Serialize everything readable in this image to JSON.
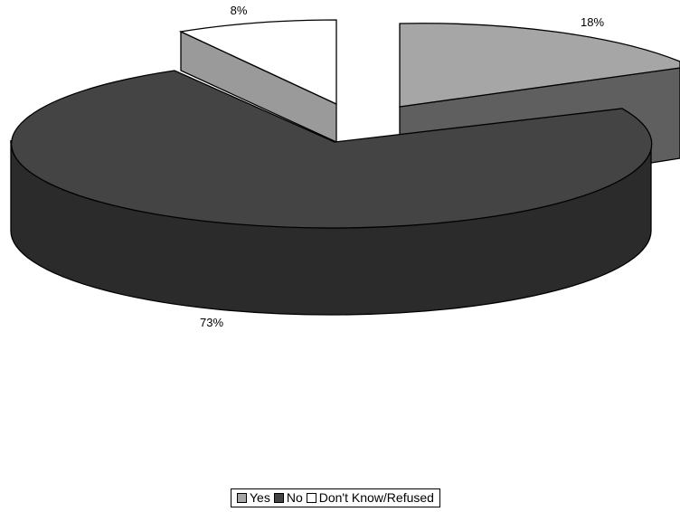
{
  "chart_data": {
    "type": "pie",
    "style": "3d-exploded",
    "categories": [
      "Yes",
      "No",
      "Don't Know/Refused"
    ],
    "values": [
      18,
      73,
      8
    ],
    "labels": [
      "18%",
      "73%",
      "8%"
    ],
    "colors": {
      "Yes": {
        "top": "#a6a6a6",
        "side": "#5f5f5f"
      },
      "No": {
        "top": "#444444",
        "side": "#2b2b2b"
      },
      "Don't Know/Refused": {
        "top": "#ffffff",
        "side": "#9a9a9a"
      }
    },
    "legend": {
      "placement": "bottom-center",
      "entries": [
        {
          "label": "Yes",
          "color": "#a6a6a6"
        },
        {
          "label": "No",
          "color": "#444444"
        },
        {
          "label": "Don't Know/Refused",
          "color": "#ffffff"
        }
      ]
    },
    "title": ""
  }
}
